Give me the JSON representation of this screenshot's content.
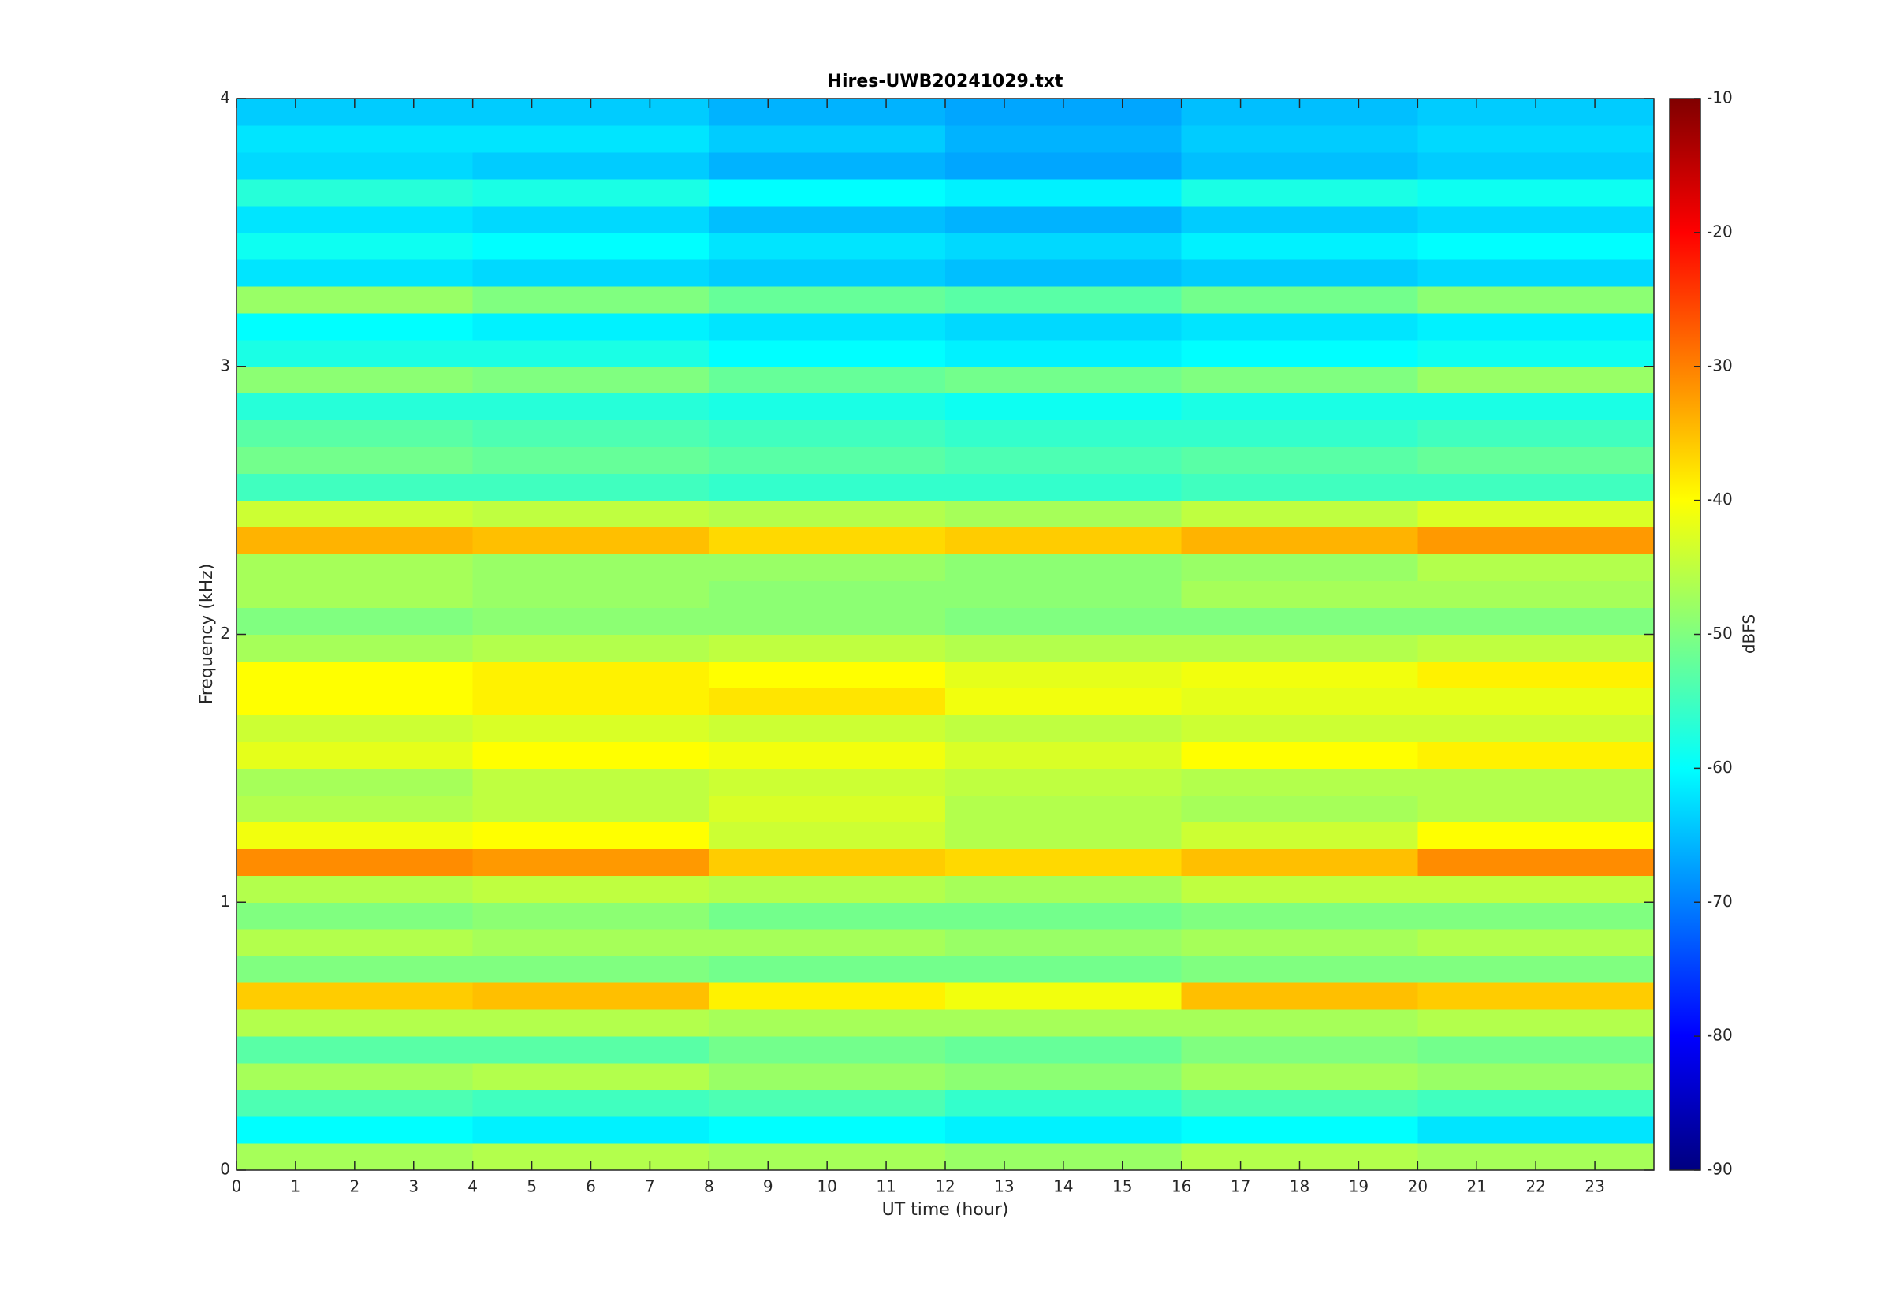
{
  "chart_data": {
    "type": "heatmap",
    "title": "Hires-UWB20241029.txt",
    "xlabel": "UT time (hour)",
    "ylabel": "Frequency (kHz)",
    "colorbar_label": "dBFS",
    "colormap": "jet",
    "xlim": [
      0,
      24
    ],
    "xticks": [
      0,
      1,
      2,
      3,
      4,
      5,
      6,
      7,
      8,
      9,
      10,
      11,
      12,
      13,
      14,
      15,
      16,
      17,
      18,
      19,
      20,
      21,
      22,
      23
    ],
    "ylim": [
      0,
      4
    ],
    "yticks": [
      0,
      1,
      2,
      3,
      4
    ],
    "clim": [
      -90,
      -10
    ],
    "cticks": [
      -90,
      -80,
      -70,
      -60,
      -50,
      -40,
      -30,
      -20,
      -10
    ],
    "x_bins": [
      0,
      4,
      8,
      12,
      16,
      20,
      24
    ],
    "y_bins": [
      0,
      0.1,
      0.2,
      0.3,
      0.4,
      0.5,
      0.6,
      0.7,
      0.8,
      0.9,
      1,
      1.1,
      1.2,
      1.3,
      1.4,
      1.5,
      1.6,
      1.7,
      1.8,
      1.9,
      2,
      2.1,
      2.2,
      2.3,
      2.4,
      2.5,
      2.6,
      2.7,
      2.8,
      2.9,
      3,
      3.1,
      3.2,
      3.3,
      3.4,
      3.5,
      3.6,
      3.7,
      3.8,
      3.9,
      4
    ],
    "z": [
      [
        -47,
        -46,
        -47,
        -48,
        -46,
        -47
      ],
      [
        -60,
        -61,
        -60,
        -61,
        -60,
        -62
      ],
      [
        -54,
        -55,
        -54,
        -56,
        -54,
        -55
      ],
      [
        -47,
        -46,
        -48,
        -49,
        -47,
        -48
      ],
      [
        -53,
        -53,
        -51,
        -52,
        -50,
        -51
      ],
      [
        -46,
        -46,
        -47,
        -47,
        -47,
        -46
      ],
      [
        -36,
        -35,
        -39,
        -41,
        -35,
        -36
      ],
      [
        -50,
        -50,
        -51,
        -51,
        -50,
        -50
      ],
      [
        -46,
        -47,
        -47,
        -48,
        -47,
        -46
      ],
      [
        -50,
        -49,
        -51,
        -51,
        -50,
        -50
      ],
      [
        -46,
        -45,
        -46,
        -47,
        -45,
        -45
      ],
      [
        -31,
        -32,
        -36,
        -37,
        -35,
        -31
      ],
      [
        -41,
        -40,
        -44,
        -46,
        -44,
        -40
      ],
      [
        -46,
        -45,
        -43,
        -46,
        -47,
        -46
      ],
      [
        -47,
        -45,
        -44,
        -45,
        -46,
        -46
      ],
      [
        -42,
        -40,
        -41,
        -43,
        -40,
        -39
      ],
      [
        -44,
        -43,
        -44,
        -45,
        -44,
        -44
      ],
      [
        -40,
        -39,
        -38,
        -41,
        -42,
        -42
      ],
      [
        -40,
        -39,
        -40,
        -42,
        -41,
        -39
      ],
      [
        -47,
        -46,
        -45,
        -46,
        -46,
        -45
      ],
      [
        -50,
        -49,
        -49,
        -50,
        -50,
        -50
      ],
      [
        -47,
        -48,
        -49,
        -49,
        -47,
        -47
      ],
      [
        -47,
        -48,
        -48,
        -49,
        -48,
        -46
      ],
      [
        -34,
        -35,
        -37,
        -36,
        -34,
        -32
      ],
      [
        -44,
        -45,
        -46,
        -47,
        -45,
        -43
      ],
      [
        -55,
        -55,
        -56,
        -56,
        -55,
        -55
      ],
      [
        -51,
        -52,
        -53,
        -54,
        -53,
        -52
      ],
      [
        -53,
        -54,
        -55,
        -56,
        -56,
        -55
      ],
      [
        -57,
        -57,
        -58,
        -59,
        -58,
        -58
      ],
      [
        -49,
        -50,
        -52,
        -51,
        -50,
        -48
      ],
      [
        -58,
        -58,
        -60,
        -61,
        -60,
        -59
      ],
      [
        -60,
        -61,
        -62,
        -63,
        -62,
        -61
      ],
      [
        -48,
        -50,
        -52,
        -53,
        -51,
        -49
      ],
      [
        -62,
        -63,
        -64,
        -65,
        -64,
        -63
      ],
      [
        -59,
        -60,
        -62,
        -63,
        -61,
        -60
      ],
      [
        -62,
        -63,
        -65,
        -66,
        -64,
        -63
      ],
      [
        -57,
        -58,
        -60,
        -61,
        -58,
        -59
      ],
      [
        -63,
        -64,
        -66,
        -67,
        -65,
        -64
      ],
      [
        -62,
        -62,
        -64,
        -66,
        -64,
        -63
      ],
      [
        -64,
        -64,
        -66,
        -67,
        -65,
        -64
      ]
    ]
  }
}
